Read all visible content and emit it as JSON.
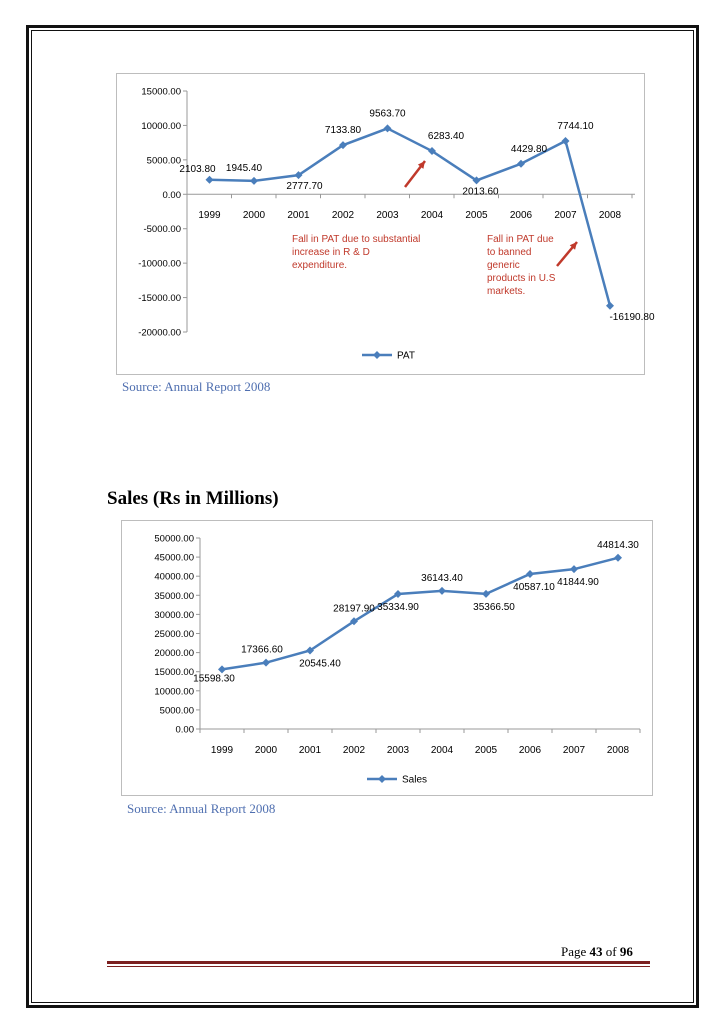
{
  "chart_data": [
    {
      "type": "line",
      "title": "",
      "xlabel": "",
      "ylabel": "",
      "categories": [
        "1999",
        "2000",
        "2001",
        "2002",
        "2003",
        "2004",
        "2005",
        "2006",
        "2007",
        "2008"
      ],
      "series": [
        {
          "name": "PAT",
          "values": [
            2103.8,
            1945.4,
            2777.7,
            7133.8,
            9563.7,
            6283.4,
            2013.6,
            4429.8,
            7744.1,
            -16190.8
          ],
          "labels": [
            "2103.80",
            "1945.40",
            "2777.70",
            "7133.80",
            "9563.70",
            "6283.40",
            "2013.60",
            "4429.80",
            "7744.10",
            "-16190.80"
          ]
        }
      ],
      "ylim": [
        -20000,
        15000
      ],
      "yticks": [
        "15000.00",
        "10000.00",
        "5000.00",
        "0.00",
        "-5000.00",
        "-10000.00",
        "-15000.00",
        "-20000.00"
      ],
      "ytick_values": [
        15000,
        10000,
        5000,
        0,
        -5000,
        -10000,
        -15000,
        -20000
      ],
      "grid": false,
      "legend": "bottom",
      "annotations": [
        {
          "lines": [
            "Fall in PAT due to substantial",
            "increase in R & D",
            "expenditure."
          ],
          "points_to": "2004"
        },
        {
          "lines": [
            "Fall in PAT due",
            "to banned",
            "generic",
            "products in U.S",
            "markets."
          ],
          "points_to": "2008"
        }
      ],
      "line_color": "#4a7ebb",
      "annotation_color": "#c0392b"
    },
    {
      "type": "line",
      "title": "",
      "xlabel": "",
      "ylabel": "",
      "categories": [
        "1999",
        "2000",
        "2001",
        "2002",
        "2003",
        "2004",
        "2005",
        "2006",
        "2007",
        "2008"
      ],
      "series": [
        {
          "name": "Sales",
          "values": [
            15598.3,
            17366.6,
            20545.4,
            28197.9,
            35334.9,
            36143.4,
            35366.5,
            40587.1,
            41844.9,
            44814.3
          ],
          "labels": [
            "15598.30",
            "17366.60",
            "20545.40",
            "28197.90",
            "35334.90",
            "36143.40",
            "35366.50",
            "40587.10",
            "41844.90",
            "44814.30"
          ]
        }
      ],
      "ylim": [
        0,
        50000
      ],
      "yticks": [
        "50000.00",
        "45000.00",
        "40000.00",
        "35000.00",
        "30000.00",
        "25000.00",
        "20000.00",
        "15000.00",
        "10000.00",
        "5000.00",
        "0.00"
      ],
      "ytick_values": [
        50000,
        45000,
        40000,
        35000,
        30000,
        25000,
        20000,
        15000,
        10000,
        5000,
        0
      ],
      "grid": false,
      "legend": "bottom",
      "line_color": "#4a7ebb"
    }
  ],
  "sources": {
    "pat": "Source: Annual Report 2008",
    "sales": "Source: Annual Report 2008"
  },
  "sales_title": "Sales (Rs in Millions)",
  "footer": {
    "page_word": "Page",
    "page_number": "43",
    "of_word": "of",
    "total_pages": "96"
  }
}
